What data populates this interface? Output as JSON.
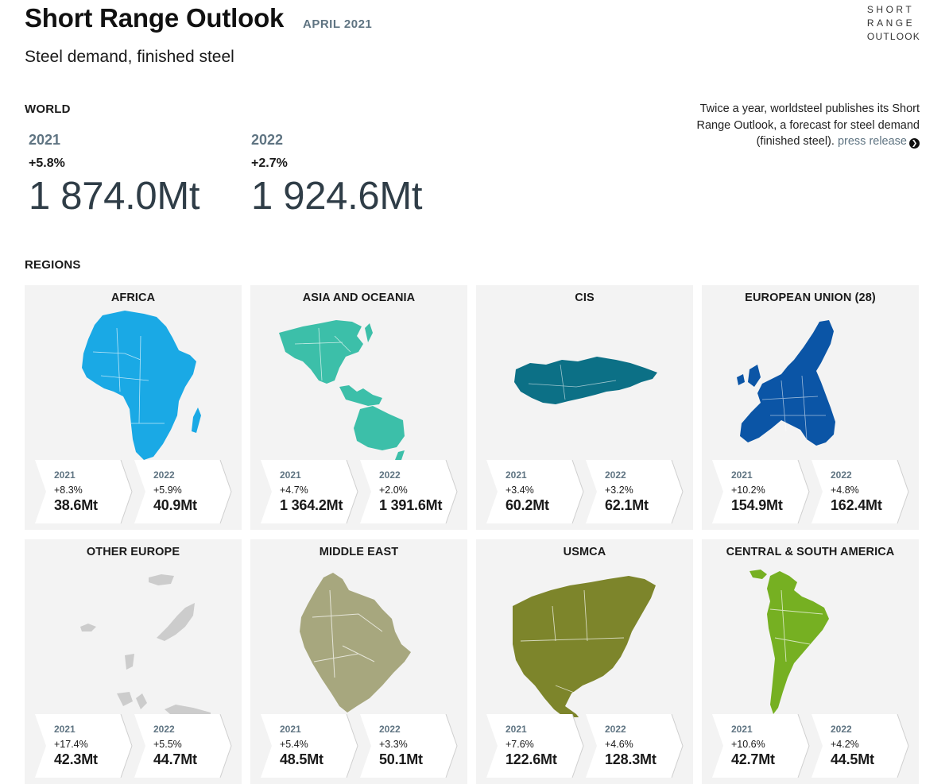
{
  "header": {
    "title": "Short Range Outlook",
    "date": "APRIL 2021",
    "subtitle": "Steel demand, finished steel",
    "logo_lines": [
      "SHORT",
      "RANGE",
      "OUTLOOK"
    ]
  },
  "intro": {
    "text": "Twice a year, worldsteel publishes its Short Range Outlook, a forecast for steel demand (finished steel).",
    "link_label": "press release"
  },
  "world": {
    "label": "WORLD",
    "years": [
      {
        "year": "2021",
        "change": "+5.8%",
        "value": "1 874.0Mt"
      },
      {
        "year": "2022",
        "change": "+2.7%",
        "value": "1 924.6Mt"
      }
    ]
  },
  "regions_label": "REGIONS",
  "regions": [
    {
      "name": "AFRICA",
      "map": "africa",
      "color": "#1aa9e5",
      "y2021": {
        "year": "2021",
        "change": "+8.3%",
        "value": "38.6Mt"
      },
      "y2022": {
        "year": "2022",
        "change": "+5.9%",
        "value": "40.9Mt"
      }
    },
    {
      "name": "ASIA AND OCEANIA",
      "map": "asia",
      "color": "#3cbfa9",
      "y2021": {
        "year": "2021",
        "change": "+4.7%",
        "value": "1 364.2Mt"
      },
      "y2022": {
        "year": "2022",
        "change": "+2.0%",
        "value": "1 391.6Mt"
      }
    },
    {
      "name": "CIS",
      "map": "cis",
      "color": "#0c7086",
      "y2021": {
        "year": "2021",
        "change": "+3.4%",
        "value": "60.2Mt"
      },
      "y2022": {
        "year": "2022",
        "change": "+3.2%",
        "value": "62.1Mt"
      }
    },
    {
      "name": "EUROPEAN UNION (28)",
      "map": "eu",
      "color": "#0b55a6",
      "y2021": {
        "year": "2021",
        "change": "+10.2%",
        "value": "154.9Mt"
      },
      "y2022": {
        "year": "2022",
        "change": "+4.8%",
        "value": "162.4Mt"
      }
    },
    {
      "name": "OTHER EUROPE",
      "map": "othereurope",
      "color": "#cccccc",
      "y2021": {
        "year": "2021",
        "change": "+17.4%",
        "value": "42.3Mt"
      },
      "y2022": {
        "year": "2022",
        "change": "+5.5%",
        "value": "44.7Mt"
      }
    },
    {
      "name": "MIDDLE EAST",
      "map": "middleeast",
      "color": "#a7a77e",
      "y2021": {
        "year": "2021",
        "change": "+5.4%",
        "value": "48.5Mt"
      },
      "y2022": {
        "year": "2022",
        "change": "+3.3%",
        "value": "50.1Mt"
      }
    },
    {
      "name": "USMCA",
      "map": "usmca",
      "color": "#7d852b",
      "y2021": {
        "year": "2021",
        "change": "+7.6%",
        "value": "122.6Mt"
      },
      "y2022": {
        "year": "2022",
        "change": "+4.6%",
        "value": "128.3Mt"
      }
    },
    {
      "name": "CENTRAL & SOUTH AMERICA",
      "map": "southamerica",
      "color": "#76b022",
      "y2021": {
        "year": "2021",
        "change": "+10.6%",
        "value": "42.7Mt"
      },
      "y2022": {
        "year": "2022",
        "change": "+4.2%",
        "value": "44.5Mt"
      }
    }
  ]
}
